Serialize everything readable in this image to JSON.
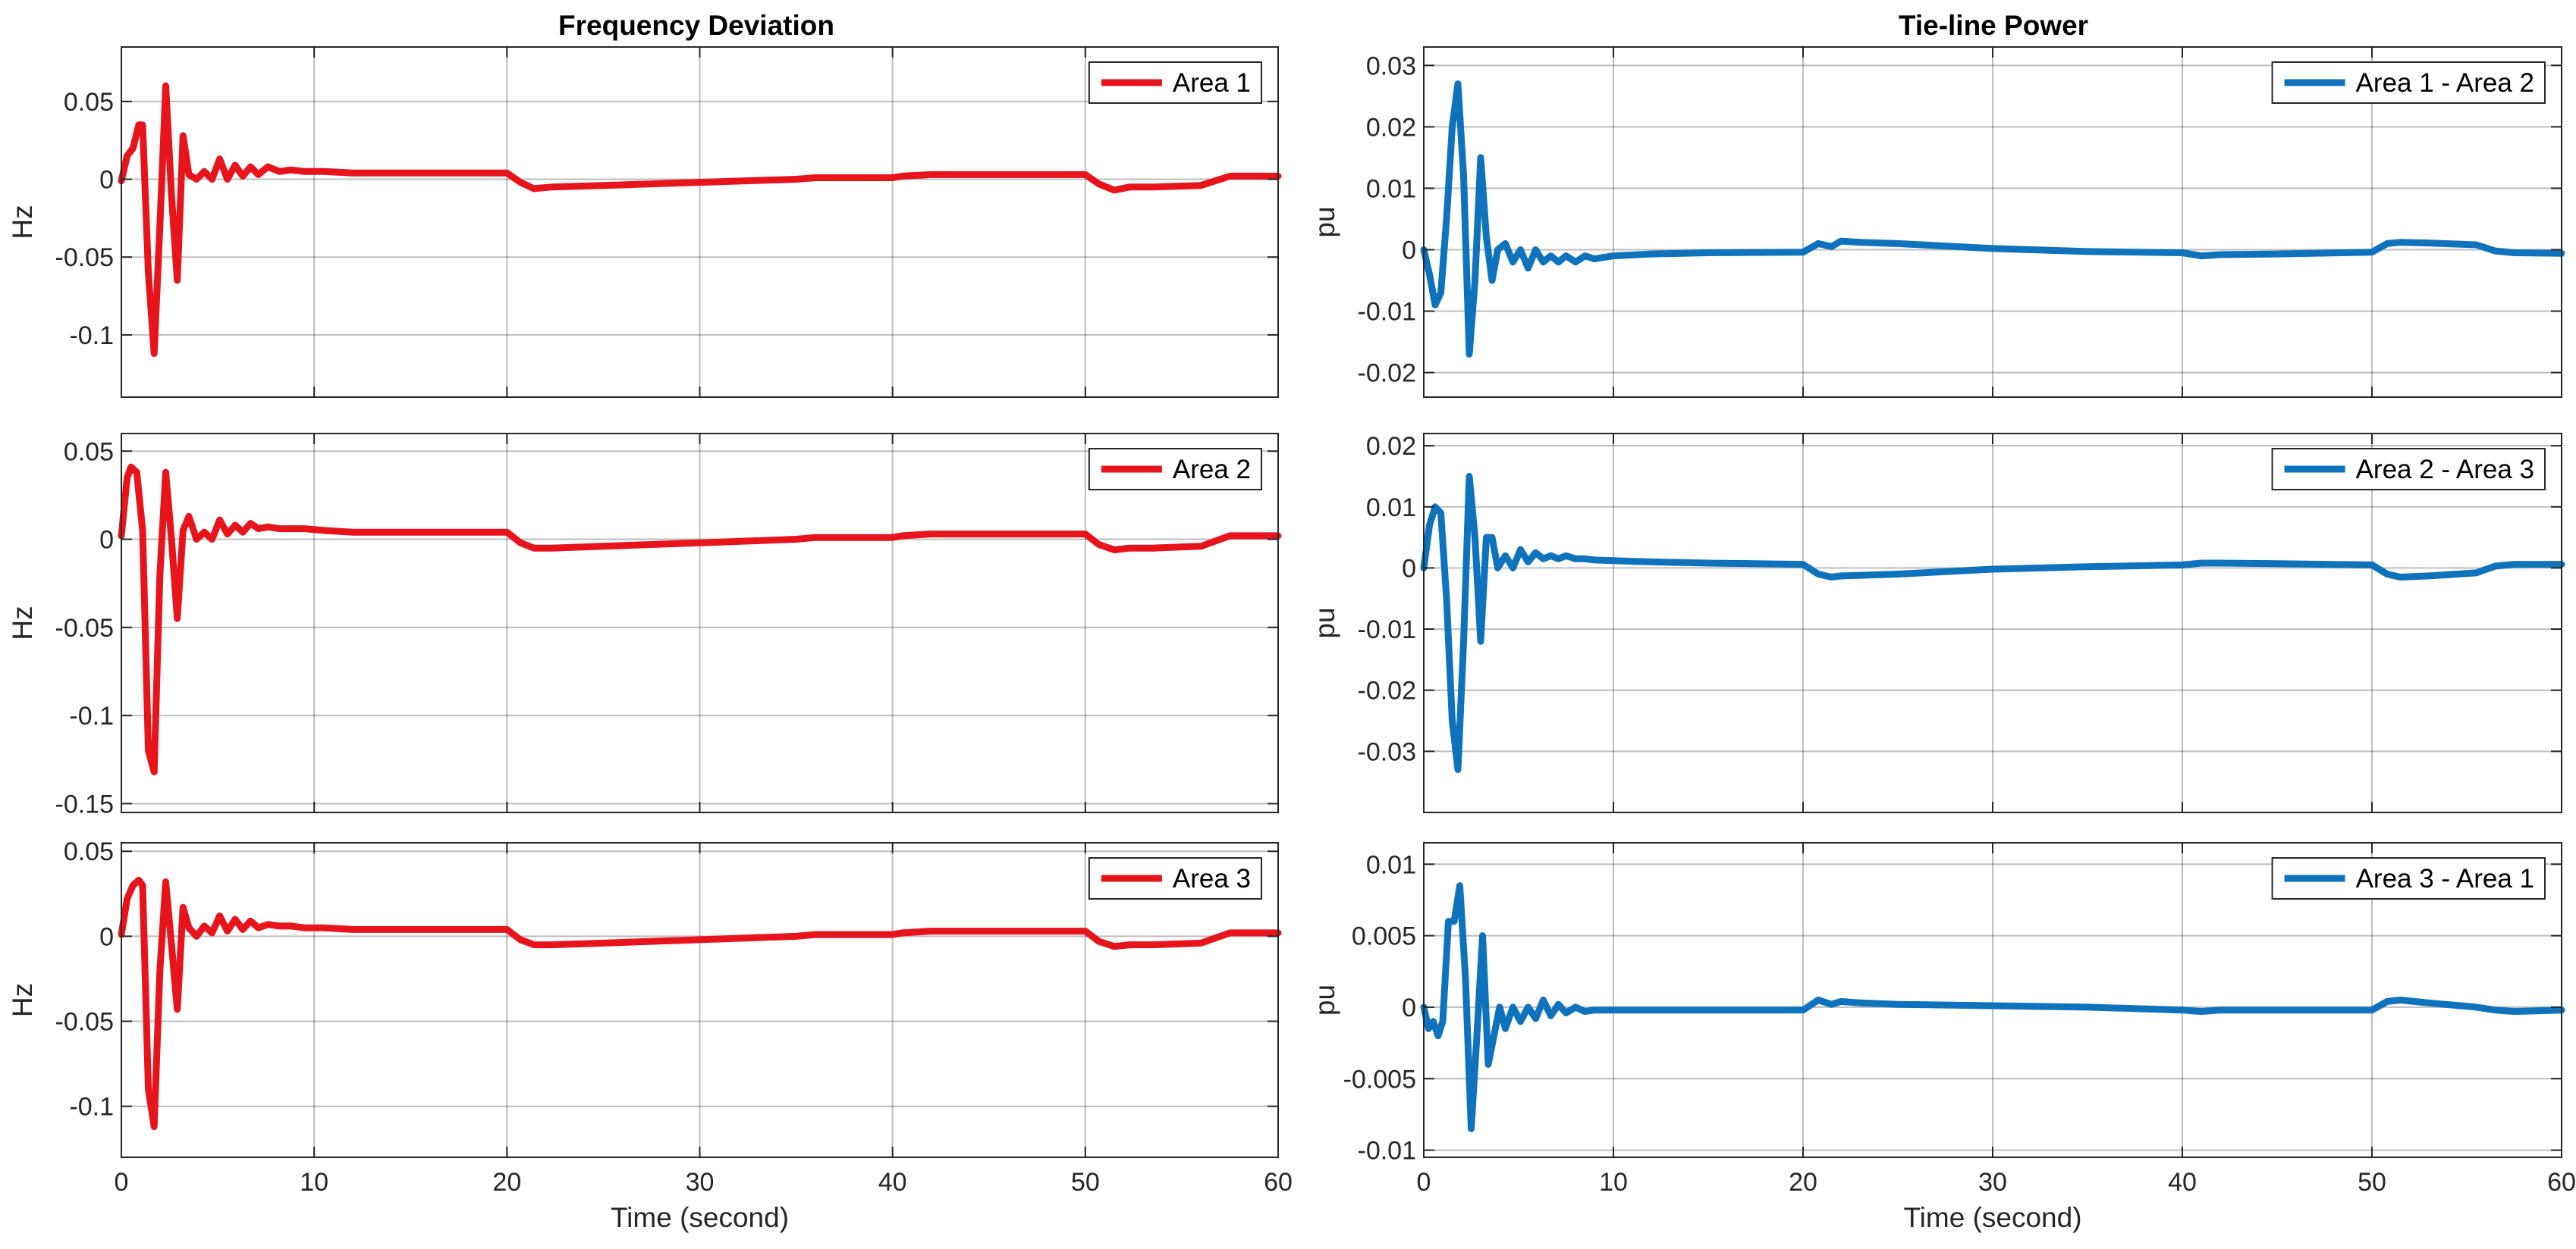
{
  "figure": {
    "left_title": "Frequency Deviation",
    "right_title": "Tie-line Power"
  },
  "chart_data": [
    {
      "type": "line",
      "id": "freq1",
      "title": "Frequency Deviation",
      "xlabel": "",
      "ylabel": "Hz",
      "xlim": [
        0,
        60
      ],
      "ylim": [
        -0.14,
        0.085
      ],
      "grid": true,
      "xticks": [
        0,
        10,
        20,
        30,
        40,
        50,
        60
      ],
      "xtick_labels": [
        "",
        "",
        "",
        "",
        "",
        "",
        ""
      ],
      "yticks": [
        0.05,
        0,
        -0.05,
        -0.1
      ],
      "ytick_labels": [
        "0.05",
        "0",
        "-0.05",
        "-0.1"
      ],
      "legend_position": "top-right",
      "series": [
        {
          "name": "Area 1",
          "color": "#e8141b",
          "x": [
            0,
            0.3,
            0.6,
            0.9,
            1.1,
            1.4,
            1.7,
            2.0,
            2.3,
            2.6,
            2.9,
            3.2,
            3.5,
            3.9,
            4.3,
            4.7,
            5.1,
            5.5,
            5.9,
            6.3,
            6.7,
            7.1,
            7.6,
            8.2,
            8.8,
            9.5,
            10.5,
            12,
            14,
            16,
            18,
            20,
            20.7,
            21.4,
            22.3,
            25,
            30,
            35,
            36,
            40,
            40.5,
            42,
            45,
            50,
            50.7,
            51.5,
            52.3,
            53.5,
            56,
            57.5,
            60
          ],
          "y": [
            -0.001,
            0.015,
            0.02,
            0.035,
            0.035,
            -0.06,
            -0.112,
            -0.03,
            0.06,
            -0.01,
            -0.065,
            0.028,
            0.003,
            0.0,
            0.005,
            0.0,
            0.013,
            0.0,
            0.009,
            0.002,
            0.008,
            0.003,
            0.008,
            0.005,
            0.006,
            0.005,
            0.005,
            0.004,
            0.004,
            0.004,
            0.004,
            0.004,
            -0.002,
            -0.006,
            -0.005,
            -0.004,
            -0.002,
            0.0,
            0.001,
            0.001,
            0.002,
            0.003,
            0.003,
            0.003,
            -0.003,
            -0.007,
            -0.005,
            -0.005,
            -0.004,
            0.002,
            0.002
          ]
        }
      ]
    },
    {
      "type": "line",
      "id": "freq2",
      "title": "",
      "xlabel": "",
      "ylabel": "Hz",
      "xlim": [
        0,
        60
      ],
      "ylim": [
        -0.155,
        0.06
      ],
      "grid": true,
      "xticks": [
        0,
        10,
        20,
        30,
        40,
        50,
        60
      ],
      "xtick_labels": [
        "",
        "",
        "",
        "",
        "",
        "",
        ""
      ],
      "yticks": [
        0.05,
        0,
        -0.05,
        -0.1,
        -0.15
      ],
      "ytick_labels": [
        "0.05",
        "0",
        "-0.05",
        "-0.1",
        "-0.15"
      ],
      "legend_position": "top-right",
      "series": [
        {
          "name": "Area 2",
          "color": "#e8141b",
          "x": [
            0,
            0.3,
            0.5,
            0.8,
            1.1,
            1.4,
            1.7,
            2.0,
            2.3,
            2.6,
            2.9,
            3.2,
            3.5,
            3.9,
            4.3,
            4.7,
            5.1,
            5.5,
            5.9,
            6.3,
            6.7,
            7.1,
            7.6,
            8.2,
            8.8,
            9.5,
            10.5,
            12,
            14,
            16,
            18,
            20,
            20.7,
            21.4,
            22.3,
            25,
            30,
            35,
            36,
            40,
            40.5,
            42,
            45,
            50,
            50.7,
            51.5,
            52.3,
            53.5,
            56,
            57.5,
            60
          ],
          "y": [
            0.002,
            0.035,
            0.041,
            0.038,
            0.005,
            -0.12,
            -0.132,
            -0.02,
            0.038,
            0.0,
            -0.045,
            0.005,
            0.013,
            0.0,
            0.004,
            0.0,
            0.011,
            0.003,
            0.008,
            0.004,
            0.009,
            0.006,
            0.007,
            0.006,
            0.006,
            0.006,
            0.005,
            0.004,
            0.004,
            0.004,
            0.004,
            0.004,
            -0.002,
            -0.005,
            -0.005,
            -0.004,
            -0.002,
            0.0,
            0.001,
            0.001,
            0.002,
            0.003,
            0.003,
            0.003,
            -0.003,
            -0.006,
            -0.005,
            -0.005,
            -0.004,
            0.002,
            0.002
          ]
        }
      ]
    },
    {
      "type": "line",
      "id": "freq3",
      "title": "",
      "xlabel": "Time (second)",
      "ylabel": "Hz",
      "xlim": [
        0,
        60
      ],
      "ylim": [
        -0.13,
        0.055
      ],
      "grid": true,
      "xticks": [
        0,
        10,
        20,
        30,
        40,
        50,
        60
      ],
      "xtick_labels": [
        "0",
        "10",
        "20",
        "30",
        "40",
        "50",
        "60"
      ],
      "yticks": [
        0.05,
        0,
        -0.05,
        -0.1
      ],
      "ytick_labels": [
        "0.05",
        "0",
        "-0.05",
        "-0.1"
      ],
      "legend_position": "top-right",
      "series": [
        {
          "name": "Area 3",
          "color": "#e8141b",
          "x": [
            0,
            0.3,
            0.6,
            0.9,
            1.1,
            1.4,
            1.7,
            2.0,
            2.3,
            2.6,
            2.9,
            3.2,
            3.5,
            3.9,
            4.3,
            4.7,
            5.1,
            5.5,
            5.9,
            6.3,
            6.7,
            7.1,
            7.6,
            8.2,
            8.8,
            9.5,
            10.5,
            12,
            14,
            16,
            18,
            20,
            20.7,
            21.4,
            22.3,
            25,
            30,
            35,
            36,
            40,
            40.5,
            42,
            45,
            50,
            50.7,
            51.5,
            52.3,
            53.5,
            56,
            57.5,
            60
          ],
          "y": [
            0.001,
            0.022,
            0.03,
            0.033,
            0.03,
            -0.09,
            -0.112,
            -0.02,
            0.032,
            -0.005,
            -0.043,
            0.017,
            0.005,
            0.0,
            0.006,
            0.002,
            0.012,
            0.003,
            0.01,
            0.004,
            0.009,
            0.005,
            0.007,
            0.006,
            0.006,
            0.005,
            0.005,
            0.004,
            0.004,
            0.004,
            0.004,
            0.004,
            -0.002,
            -0.005,
            -0.005,
            -0.004,
            -0.002,
            0.0,
            0.001,
            0.001,
            0.002,
            0.003,
            0.003,
            0.003,
            -0.003,
            -0.006,
            -0.005,
            -0.005,
            -0.004,
            0.002,
            0.002
          ]
        }
      ]
    },
    {
      "type": "line",
      "id": "tie1",
      "title": "Tie-line Power",
      "xlabel": "",
      "ylabel": "pu",
      "xlim": [
        0,
        60
      ],
      "ylim": [
        -0.024,
        0.033
      ],
      "grid": true,
      "xticks": [
        0,
        10,
        20,
        30,
        40,
        50,
        60
      ],
      "xtick_labels": [
        "",
        "",
        "",
        "",
        "",
        "",
        ""
      ],
      "yticks": [
        0.03,
        0.02,
        0.01,
        0,
        -0.01,
        -0.02
      ],
      "ytick_labels": [
        "0.03",
        "0.02",
        "0.01",
        "0",
        "-0.01",
        "-0.02"
      ],
      "legend_position": "top-right",
      "series": [
        {
          "name": "Area 1 - Area 2",
          "color": "#0e72bd",
          "x": [
            0,
            0.3,
            0.6,
            0.9,
            1.2,
            1.5,
            1.8,
            2.1,
            2.4,
            2.7,
            3.0,
            3.3,
            3.6,
            3.9,
            4.3,
            4.7,
            5.1,
            5.5,
            5.9,
            6.3,
            6.7,
            7.1,
            7.5,
            8.0,
            8.5,
            9.0,
            10,
            12,
            15,
            20,
            20.8,
            21.5,
            22,
            23,
            25,
            30,
            35,
            40,
            41,
            42,
            45,
            50,
            50.8,
            51.5,
            53,
            55.5,
            56.5,
            57.5,
            60
          ],
          "y": [
            0.0,
            -0.004,
            -0.009,
            -0.007,
            0.005,
            0.02,
            0.027,
            0.012,
            -0.017,
            -0.005,
            0.015,
            0.002,
            -0.005,
            0.0,
            0.001,
            -0.002,
            0.0,
            -0.003,
            0.0,
            -0.002,
            -0.001,
            -0.002,
            -0.001,
            -0.002,
            -0.001,
            -0.0015,
            -0.001,
            -0.0007,
            -0.0005,
            -0.0004,
            0.001,
            0.0005,
            0.0014,
            0.0012,
            0.001,
            0.0002,
            -0.0003,
            -0.0005,
            -0.001,
            -0.0008,
            -0.0007,
            -0.0004,
            0.001,
            0.0012,
            0.0011,
            0.0008,
            -0.0002,
            -0.0005,
            -0.0006
          ]
        }
      ]
    },
    {
      "type": "line",
      "id": "tie2",
      "title": "",
      "xlabel": "",
      "ylabel": "pu",
      "xlim": [
        0,
        60
      ],
      "ylim": [
        -0.04,
        0.022
      ],
      "grid": true,
      "xticks": [
        0,
        10,
        20,
        30,
        40,
        50,
        60
      ],
      "xtick_labels": [
        "",
        "",
        "",
        "",
        "",
        "",
        ""
      ],
      "yticks": [
        0.02,
        0.01,
        0,
        -0.01,
        -0.02,
        -0.03
      ],
      "ytick_labels": [
        "0.02",
        "0.01",
        "0",
        "-0.01",
        "-0.02",
        "-0.03"
      ],
      "legend_position": "top-right",
      "series": [
        {
          "name": "Area 2 - Area 3",
          "color": "#0e72bd",
          "x": [
            0,
            0.3,
            0.6,
            0.9,
            1.2,
            1.5,
            1.8,
            2.1,
            2.4,
            2.7,
            3.0,
            3.3,
            3.6,
            3.9,
            4.3,
            4.7,
            5.1,
            5.5,
            5.9,
            6.3,
            6.7,
            7.1,
            7.5,
            8.0,
            8.5,
            9.0,
            10,
            12,
            15,
            20,
            20.8,
            21.5,
            22,
            23,
            25,
            30,
            35,
            40,
            41,
            42,
            45,
            50,
            50.8,
            51.5,
            53,
            55.5,
            56.5,
            57.5,
            60
          ],
          "y": [
            0.0,
            0.007,
            0.01,
            0.009,
            -0.005,
            -0.025,
            -0.033,
            -0.012,
            0.015,
            0.005,
            -0.012,
            0.005,
            0.005,
            0.0,
            0.002,
            0.0,
            0.003,
            0.001,
            0.0025,
            0.0015,
            0.002,
            0.0015,
            0.002,
            0.0015,
            0.0015,
            0.0013,
            0.0012,
            0.001,
            0.0008,
            0.0006,
            -0.001,
            -0.0015,
            -0.0013,
            -0.0012,
            -0.001,
            -0.0002,
            0.0002,
            0.0005,
            0.0008,
            0.0008,
            0.0007,
            0.0005,
            -0.001,
            -0.0015,
            -0.0013,
            -0.0008,
            0.0003,
            0.0006,
            0.0006
          ]
        }
      ]
    },
    {
      "type": "line",
      "id": "tie3",
      "title": "",
      "xlabel": "Time (second)",
      "ylabel": "pu",
      "xlim": [
        0,
        60
      ],
      "ylim": [
        -0.0105,
        0.0115
      ],
      "grid": true,
      "xticks": [
        0,
        10,
        20,
        30,
        40,
        50,
        60
      ],
      "xtick_labels": [
        "0",
        "10",
        "20",
        "30",
        "40",
        "50",
        "60"
      ],
      "yticks": [
        0.01,
        0.005,
        0,
        -0.005,
        -0.01
      ],
      "ytick_labels": [
        "0.01",
        "0.005",
        "0",
        "-0.005",
        "-0.01"
      ],
      "legend_position": "top-right",
      "series": [
        {
          "name": "Area 3 - Area 1",
          "color": "#0e72bd",
          "x": [
            0,
            0.25,
            0.5,
            0.75,
            1.0,
            1.3,
            1.6,
            1.9,
            2.2,
            2.5,
            2.8,
            3.1,
            3.4,
            3.7,
            4.0,
            4.3,
            4.7,
            5.1,
            5.5,
            5.9,
            6.3,
            6.7,
            7.1,
            7.5,
            8.0,
            8.5,
            9.0,
            10,
            12,
            15,
            20,
            20.8,
            21.5,
            22,
            23,
            25,
            30,
            35,
            40,
            41,
            42,
            45,
            50,
            50.8,
            51.5,
            53,
            55.5,
            56.5,
            57.5,
            60
          ],
          "y": [
            0.0,
            -0.0015,
            -0.001,
            -0.002,
            -0.001,
            0.006,
            0.006,
            0.0085,
            0.002,
            -0.0085,
            -0.002,
            0.005,
            -0.004,
            -0.002,
            0.0,
            -0.0015,
            0.0,
            -0.001,
            0.0,
            -0.0008,
            0.0005,
            -0.0006,
            0.0002,
            -0.0004,
            0.0,
            -0.0003,
            -0.0002,
            -0.0002,
            -0.0002,
            -0.0002,
            -0.0002,
            0.0005,
            0.0002,
            0.0004,
            0.0003,
            0.0002,
            0.0001,
            0.0,
            -0.0002,
            -0.0003,
            -0.0002,
            -0.0002,
            -0.0002,
            0.0004,
            0.0005,
            0.0003,
            0.0,
            -0.0002,
            -0.0003,
            -0.0002
          ]
        }
      ]
    }
  ]
}
